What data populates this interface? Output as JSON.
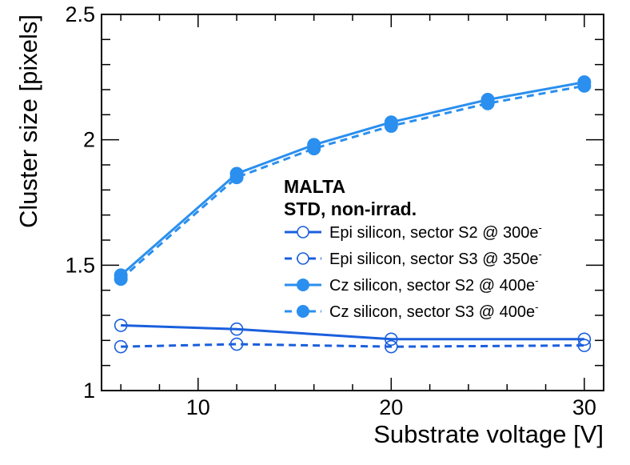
{
  "chart_data": {
    "type": "line",
    "title": "",
    "xlabel": "Substrate voltage [V]",
    "ylabel": "Cluster size [pixels]",
    "xlim": [
      5,
      31
    ],
    "ylim": [
      1,
      2.5
    ],
    "x_major_ticks": [
      10,
      20,
      30
    ],
    "y_major_ticks": [
      1,
      1.5,
      2,
      2.5
    ],
    "x_tick_labels": [
      "10",
      "20",
      "30"
    ],
    "y_tick_labels": [
      "1",
      "1.5",
      "2",
      "2.5"
    ],
    "grid": false,
    "legend_position": "center-right",
    "legend_header": [
      "MALTA",
      "STD, non-irrad."
    ],
    "series": [
      {
        "name": "Epi silicon, sector S2 @ 300e",
        "name_superscript": "-",
        "line": "solid",
        "marker": "open-circle",
        "color": "#1a5fdd",
        "x": [
          6,
          12,
          20,
          30
        ],
        "values": [
          1.26,
          1.245,
          1.205,
          1.205
        ]
      },
      {
        "name": "Epi silicon, sector S3 @ 350e",
        "name_superscript": "-",
        "line": "dashed",
        "marker": "open-circle",
        "color": "#1a5fdd",
        "x": [
          6,
          12,
          20,
          30
        ],
        "values": [
          1.175,
          1.185,
          1.175,
          1.18
        ]
      },
      {
        "name": "Cz silicon, sector S2 @ 400e",
        "name_superscript": "-",
        "line": "solid",
        "marker": "filled-circle",
        "color": "#2a8fee",
        "x": [
          6,
          12,
          16,
          20,
          25,
          30
        ],
        "values": [
          1.46,
          1.865,
          1.98,
          2.07,
          2.16,
          2.23
        ]
      },
      {
        "name": "Cz silicon, sector S3 @ 400e",
        "name_superscript": "-",
        "line": "dashed",
        "marker": "filled-circle",
        "color": "#2a8fee",
        "x": [
          6,
          12,
          16,
          20,
          25,
          30
        ],
        "values": [
          1.445,
          1.85,
          1.965,
          2.055,
          2.145,
          2.215
        ]
      }
    ]
  }
}
